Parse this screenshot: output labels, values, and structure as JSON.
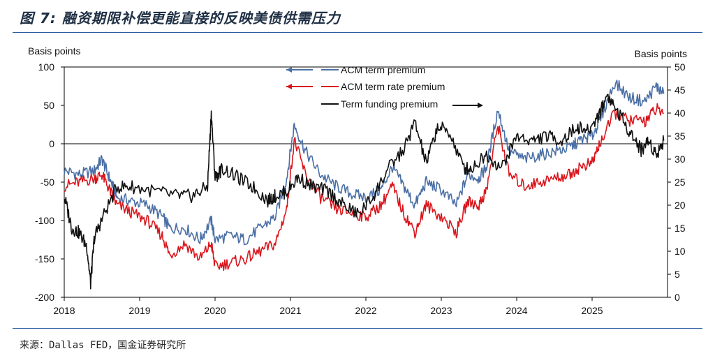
{
  "page": {
    "title": "图 7: 融资期限补偿更能直接的反映美债供需压力",
    "source": "来源：Dallas FED，国金证券研究所"
  },
  "chart_data": {
    "type": "line",
    "left_axis_label": "Basis points",
    "right_axis_label": "Basis points",
    "left_ylim": [
      -200,
      100
    ],
    "right_ylim": [
      0,
      50
    ],
    "left_ticks": [
      "100",
      "50",
      "0",
      "-50",
      "-100",
      "-150",
      "-200"
    ],
    "right_ticks": [
      "50",
      "45",
      "40",
      "35",
      "30",
      "25",
      "20",
      "15",
      "10",
      "5",
      "0"
    ],
    "x_ticks": [
      "2018",
      "2019",
      "2020",
      "2021",
      "2022",
      "2023",
      "2024",
      "2025"
    ],
    "x_range": [
      2018,
      2026
    ],
    "zero_line": true,
    "colors": {
      "acm_term": "#4a6fa5",
      "acm_rate": "#d9161c",
      "funding": "#111111"
    },
    "legend": [
      {
        "label": "ACM term premium",
        "axis": "left",
        "color": "#4a6fa5"
      },
      {
        "label": "ACM term rate premium",
        "axis": "left",
        "color": "#d9161c"
      },
      {
        "label": "Term funding premium",
        "axis": "right",
        "color": "#111111"
      }
    ],
    "series": [
      {
        "name": "ACM term premium",
        "axis": "left",
        "x": [
          2018.0,
          2018.2,
          2018.4,
          2018.5,
          2018.6,
          2018.7,
          2018.9,
          2019.1,
          2019.3,
          2019.4,
          2019.6,
          2019.8,
          2019.95,
          2020.0,
          2020.2,
          2020.4,
          2020.6,
          2020.8,
          2020.95,
          2021.05,
          2021.2,
          2021.4,
          2021.6,
          2021.8,
          2022.0,
          2022.2,
          2022.35,
          2022.5,
          2022.65,
          2022.8,
          2023.0,
          2023.2,
          2023.35,
          2023.5,
          2023.6,
          2023.75,
          2023.9,
          2024.1,
          2024.3,
          2024.5,
          2024.7,
          2024.85,
          2025.0,
          2025.1,
          2025.3,
          2025.5,
          2025.7,
          2025.85,
          2025.95
        ],
        "y": [
          -35,
          -40,
          -35,
          -20,
          -45,
          -70,
          -75,
          -80,
          -95,
          -110,
          -110,
          -125,
          -100,
          -125,
          -120,
          -125,
          -110,
          -95,
          -45,
          25,
          -10,
          -40,
          -55,
          -65,
          -70,
          -60,
          -30,
          -55,
          -80,
          -50,
          -60,
          -80,
          -40,
          -45,
          -30,
          45,
          -10,
          -20,
          -15,
          -10,
          -5,
          5,
          10,
          30,
          80,
          60,
          55,
          75,
          65
        ]
      },
      {
        "name": "ACM term rate premium",
        "axis": "left",
        "x": [
          2018.0,
          2018.2,
          2018.4,
          2018.5,
          2018.6,
          2018.7,
          2018.9,
          2019.1,
          2019.3,
          2019.4,
          2019.6,
          2019.8,
          2019.95,
          2020.0,
          2020.2,
          2020.4,
          2020.6,
          2020.8,
          2020.95,
          2021.05,
          2021.2,
          2021.4,
          2021.6,
          2021.8,
          2022.0,
          2022.2,
          2022.35,
          2022.5,
          2022.65,
          2022.8,
          2023.0,
          2023.2,
          2023.35,
          2023.5,
          2023.6,
          2023.75,
          2023.9,
          2024.1,
          2024.3,
          2024.5,
          2024.7,
          2024.85,
          2025.0,
          2025.1,
          2025.3,
          2025.5,
          2025.7,
          2025.85,
          2025.95
        ],
        "y": [
          -55,
          -50,
          -45,
          -40,
          -60,
          -80,
          -90,
          -100,
          -120,
          -145,
          -130,
          -150,
          -130,
          -160,
          -155,
          -150,
          -140,
          -130,
          -85,
          5,
          -40,
          -70,
          -85,
          -90,
          -95,
          -80,
          -55,
          -90,
          -115,
          -80,
          -95,
          -115,
          -75,
          -80,
          -60,
          25,
          -40,
          -55,
          -50,
          -45,
          -40,
          -30,
          -25,
          0,
          40,
          30,
          30,
          45,
          40
        ]
      },
      {
        "name": "Term funding premium",
        "axis": "right",
        "x": [
          2018.0,
          2018.1,
          2018.2,
          2018.3,
          2018.35,
          2018.4,
          2018.5,
          2018.7,
          2018.9,
          2019.2,
          2019.5,
          2019.7,
          2019.9,
          2019.95,
          2020.0,
          2020.1,
          2020.3,
          2020.5,
          2020.7,
          2020.8,
          2020.95,
          2021.1,
          2021.3,
          2021.5,
          2021.7,
          2021.9,
          2022.1,
          2022.3,
          2022.5,
          2022.65,
          2022.8,
          2022.95,
          2023.1,
          2023.3,
          2023.4,
          2023.6,
          2023.8,
          2024.0,
          2024.2,
          2024.4,
          2024.6,
          2024.8,
          2024.95,
          2025.1,
          2025.2,
          2025.35,
          2025.5,
          2025.65,
          2025.75,
          2025.85,
          2025.95
        ],
        "y": [
          22,
          15,
          14,
          11,
          3,
          13,
          17,
          24,
          24,
          23,
          22,
          22,
          24,
          40,
          26,
          28,
          26,
          24,
          21,
          22,
          23,
          26,
          24,
          23,
          20,
          18,
          22,
          28,
          32,
          38,
          29,
          37,
          36,
          28,
          28,
          31,
          28,
          35,
          34,
          35,
          34,
          37,
          36,
          40,
          44,
          40,
          36,
          32,
          34,
          31,
          34
        ]
      }
    ]
  }
}
